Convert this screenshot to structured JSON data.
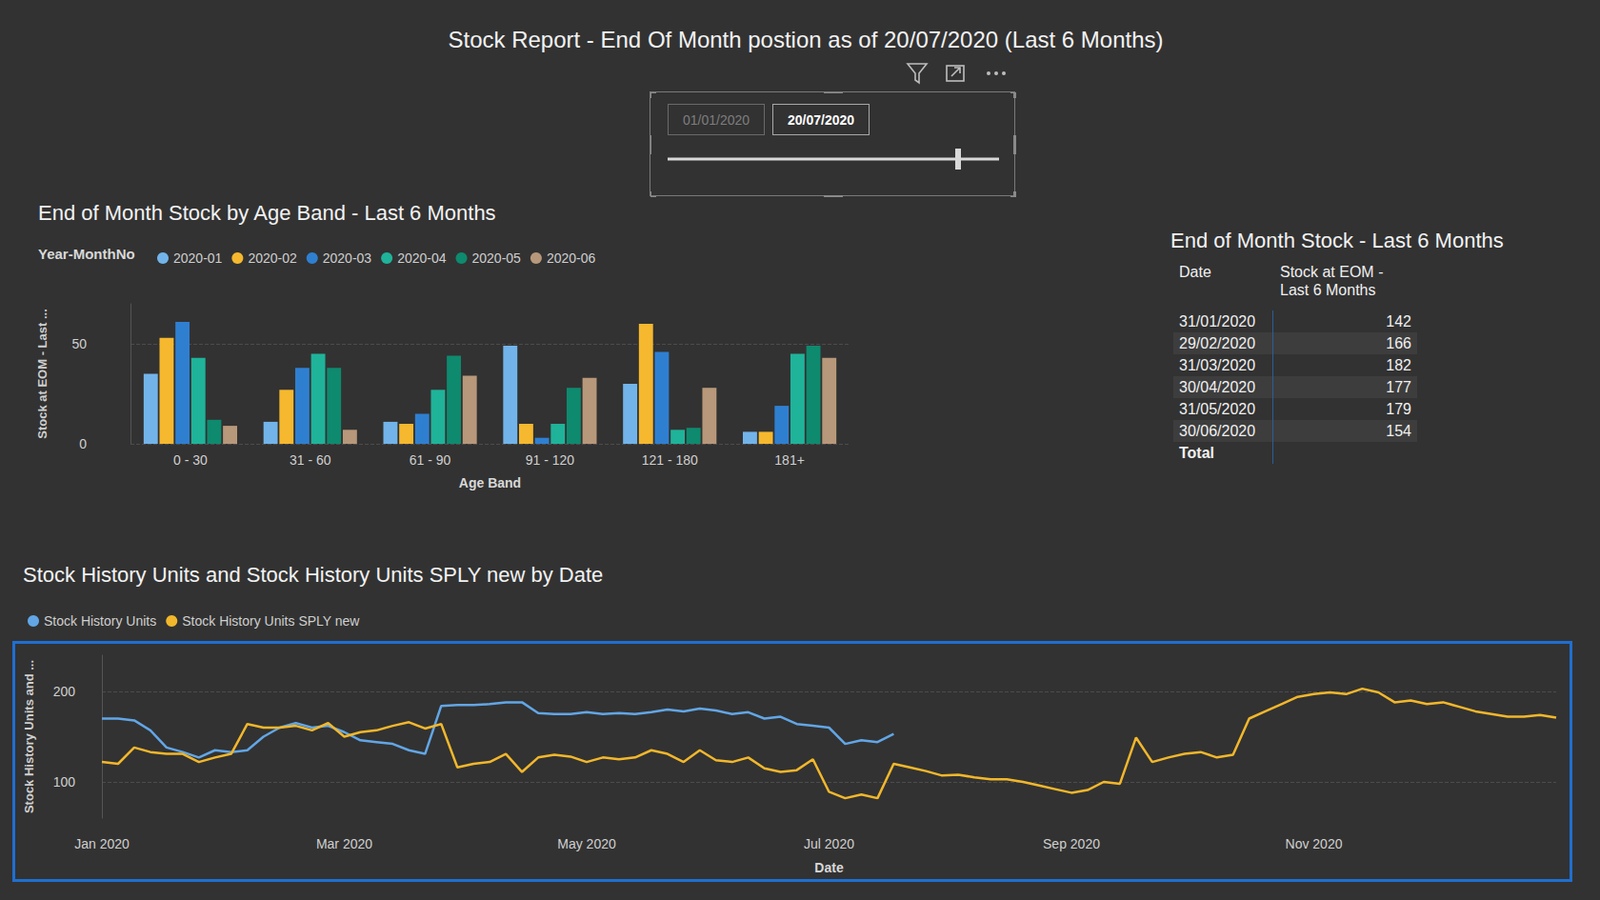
{
  "page_title": "Stock Report - End Of Month postion as of 20/07/2020 (Last 6 Months)",
  "slicer": {
    "start": "01/01/2020",
    "end": "20/07/2020"
  },
  "chart_data": [
    {
      "type": "bar",
      "title": "End of Month Stock by Age Band - Last 6 Months",
      "legend_title": "Year-MonthNo",
      "x_label": "Age Band",
      "y_label": "Stock at EOM - Last ...",
      "categories": [
        "0 - 30",
        "31 - 60",
        "61 - 90",
        "91 - 120",
        "121 - 180",
        "181+"
      ],
      "series": [
        {
          "name": "2020-01",
          "color": "#72b4ea",
          "values": [
            35,
            11,
            11,
            49,
            30,
            6
          ]
        },
        {
          "name": "2020-02",
          "color": "#f5b82e",
          "values": [
            53,
            27,
            10,
            10,
            60,
            6
          ]
        },
        {
          "name": "2020-03",
          "color": "#2f7fd1",
          "values": [
            61,
            38,
            15,
            3,
            46,
            19
          ]
        },
        {
          "name": "2020-04",
          "color": "#1fb39a",
          "values": [
            43,
            45,
            27,
            10,
            7,
            45
          ]
        },
        {
          "name": "2020-05",
          "color": "#0e8a6e",
          "values": [
            12,
            38,
            44,
            28,
            8,
            49
          ]
        },
        {
          "name": "2020-06",
          "color": "#b8987a",
          "values": [
            9,
            7,
            34,
            33,
            28,
            43
          ]
        }
      ],
      "ylim": [
        0,
        70
      ],
      "yticks": [
        0,
        50
      ],
      "grid": true,
      "legend": "top left"
    },
    {
      "type": "line",
      "title": "Stock History Units and Stock History Units SPLY new by Date",
      "x_label": "Date",
      "y_label": "Stock History Units and ...",
      "categories": [
        "Jan 2020",
        null,
        null,
        null,
        null,
        null,
        null,
        null,
        null,
        null,
        null,
        null,
        null,
        null,
        null,
        "Mar 2020",
        null,
        null,
        null,
        null,
        null,
        null,
        null,
        null,
        null,
        null,
        null,
        null,
        null,
        null,
        "May 2020",
        null,
        null,
        null,
        null,
        null,
        null,
        null,
        null,
        null,
        null,
        null,
        null,
        null,
        null,
        "Jul 2020",
        null,
        null,
        null,
        null,
        null,
        null,
        null,
        null,
        null,
        null,
        null,
        null,
        null,
        null,
        "Sep 2020",
        null,
        null,
        null,
        null,
        null,
        null,
        null,
        null,
        null,
        null,
        null,
        null,
        null,
        null,
        "Nov 2020",
        null,
        null,
        null,
        null,
        null,
        null,
        null,
        null,
        null,
        null,
        null,
        null,
        null,
        null,
        null
      ],
      "series": [
        {
          "name": "Stock History Units",
          "color": "#62a6e6",
          "values": [
            170,
            170,
            168,
            157,
            138,
            133,
            127,
            135,
            133,
            135,
            150,
            160,
            165,
            160,
            162,
            155,
            146,
            144,
            142,
            135,
            131,
            184,
            185,
            185,
            186,
            188,
            188,
            176,
            175,
            175,
            177,
            175,
            176,
            175,
            177,
            180,
            178,
            181,
            179,
            175,
            177,
            170,
            172,
            164,
            162,
            160,
            142,
            146,
            144,
            153,
            null,
            null,
            null,
            null,
            null,
            null,
            null,
            null,
            null,
            null,
            null,
            null,
            null,
            null,
            null,
            null,
            null,
            null,
            null,
            null,
            null,
            null,
            null,
            null,
            null,
            null,
            null,
            null,
            null,
            null,
            null,
            null,
            null,
            null,
            null,
            null,
            null,
            null,
            null,
            null,
            null
          ]
        },
        {
          "name": "Stock History Units SPLY new",
          "color": "#f2b72b",
          "values": [
            122,
            120,
            138,
            133,
            131,
            131,
            122,
            127,
            131,
            164,
            160,
            160,
            162,
            157,
            165,
            150,
            155,
            157,
            162,
            166,
            159,
            164,
            116,
            120,
            122,
            131,
            111,
            127,
            130,
            128,
            122,
            127,
            125,
            127,
            135,
            131,
            122,
            135,
            124,
            122,
            127,
            115,
            111,
            113,
            125,
            89,
            82,
            86,
            82,
            120,
            116,
            112,
            107,
            108,
            105,
            103,
            103,
            100,
            96,
            92,
            88,
            91,
            100,
            98,
            149,
            122,
            127,
            131,
            133,
            127,
            130,
            170,
            178,
            186,
            194,
            197,
            199,
            197,
            203,
            199,
            188,
            190,
            186,
            188,
            183,
            178,
            175,
            172,
            172,
            174,
            171
          ]
        }
      ],
      "ylim": [
        60,
        240
      ],
      "yticks": [
        100,
        200
      ],
      "grid": true,
      "legend": "top left"
    }
  ],
  "table": {
    "title": "End of Month Stock - Last 6 Months",
    "columns": [
      "Date",
      "Stock at EOM - Last 6 Months"
    ],
    "rows": [
      [
        "31/01/2020",
        142
      ],
      [
        "29/02/2020",
        166
      ],
      [
        "31/03/2020",
        182
      ],
      [
        "30/04/2020",
        177
      ],
      [
        "31/05/2020",
        179
      ],
      [
        "30/06/2020",
        154
      ]
    ],
    "total_label": "Total"
  }
}
